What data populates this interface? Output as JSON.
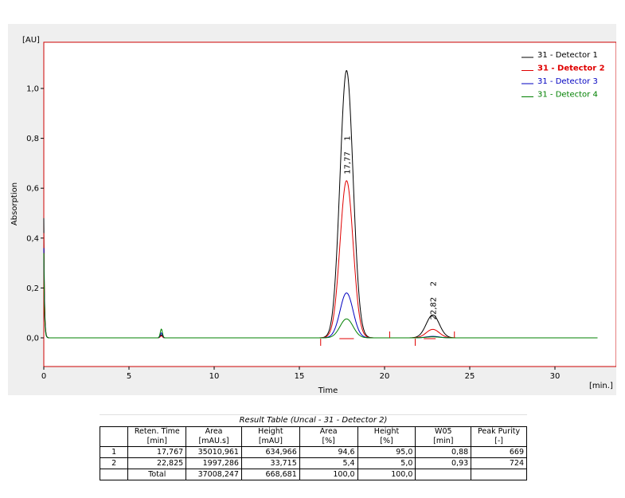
{
  "chart_data": {
    "type": "line",
    "ylabel": "Absorption",
    "yunit": "[AU]",
    "xlabel": "Time",
    "xunit": "[min.]",
    "xlim": [
      0,
      32.5
    ],
    "ylim": [
      -0.11,
      1.17
    ],
    "xticks": [
      0,
      5,
      10,
      15,
      20,
      25,
      30
    ],
    "xtick_labels": [
      "0",
      "5",
      "10",
      "15",
      "20",
      "25",
      "30"
    ],
    "yticks": [
      0.0,
      0.2,
      0.4,
      0.6,
      0.8,
      1.0
    ],
    "ytick_labels": [
      "0,0",
      "0,2",
      "0,4",
      "0,6",
      "0,8",
      "1,0"
    ],
    "legend_position": "top-right",
    "series": [
      {
        "name": "31 - Detector 1",
        "color": "#000000",
        "peaks": [
          {
            "x": 17.77,
            "height": 1.072,
            "width": 0.9
          },
          {
            "x": 22.83,
            "height": 0.092,
            "width": 0.9
          },
          {
            "x": 6.9,
            "height": 0.012,
            "width": 0.15
          }
        ]
      },
      {
        "name": "31 - Detector 2",
        "color": "#e00000",
        "peaks": [
          {
            "x": 17.77,
            "height": 0.63,
            "width": 0.9
          },
          {
            "x": 22.83,
            "height": 0.034,
            "width": 0.9
          },
          {
            "x": 6.9,
            "height": 0.008,
            "width": 0.15
          }
        ]
      },
      {
        "name": "31 - Detector 3",
        "color": "#0000c0",
        "peaks": [
          {
            "x": 17.77,
            "height": 0.18,
            "width": 0.9
          },
          {
            "x": 22.83,
            "height": 0.006,
            "width": 0.9
          },
          {
            "x": 6.9,
            "height": 0.02,
            "width": 0.15
          }
        ]
      },
      {
        "name": "31 - Detector 4",
        "color": "#008000",
        "peaks": [
          {
            "x": 17.77,
            "height": 0.076,
            "width": 0.9
          },
          {
            "x": 22.83,
            "height": 0.004,
            "width": 0.9
          },
          {
            "x": 6.9,
            "height": 0.035,
            "width": 0.15
          }
        ]
      }
    ],
    "annotations": [
      {
        "x": 17.77,
        "label": "17,77",
        "peak_number": "1"
      },
      {
        "x": 22.82,
        "label": "22,82",
        "peak_number": "2"
      }
    ],
    "frame_color": "#cc0000"
  },
  "result_table": {
    "title": "Result Table (Uncal - 31 - Detector 2)",
    "headers": [
      {
        "line1": "",
        "line2": ""
      },
      {
        "line1": "Reten. Time",
        "line2": "[min]"
      },
      {
        "line1": "Area",
        "line2": "[mAU.s]"
      },
      {
        "line1": "Height",
        "line2": "[mAU]"
      },
      {
        "line1": "Area",
        "line2": "[%]"
      },
      {
        "line1": "Height",
        "line2": "[%]"
      },
      {
        "line1": "W05",
        "line2": "[min]"
      },
      {
        "line1": "Peak Purity",
        "line2": "[-]"
      }
    ],
    "rows": [
      [
        "1",
        "17,767",
        "35010,961",
        "634,966",
        "94,6",
        "95,0",
        "0,88",
        "669"
      ],
      [
        "2",
        "22,825",
        "1997,286",
        "33,715",
        "5,4",
        "5,0",
        "0,93",
        "724"
      ]
    ],
    "total": [
      "",
      "Total",
      "37008,247",
      "668,681",
      "100,0",
      "100,0",
      "",
      ""
    ]
  }
}
